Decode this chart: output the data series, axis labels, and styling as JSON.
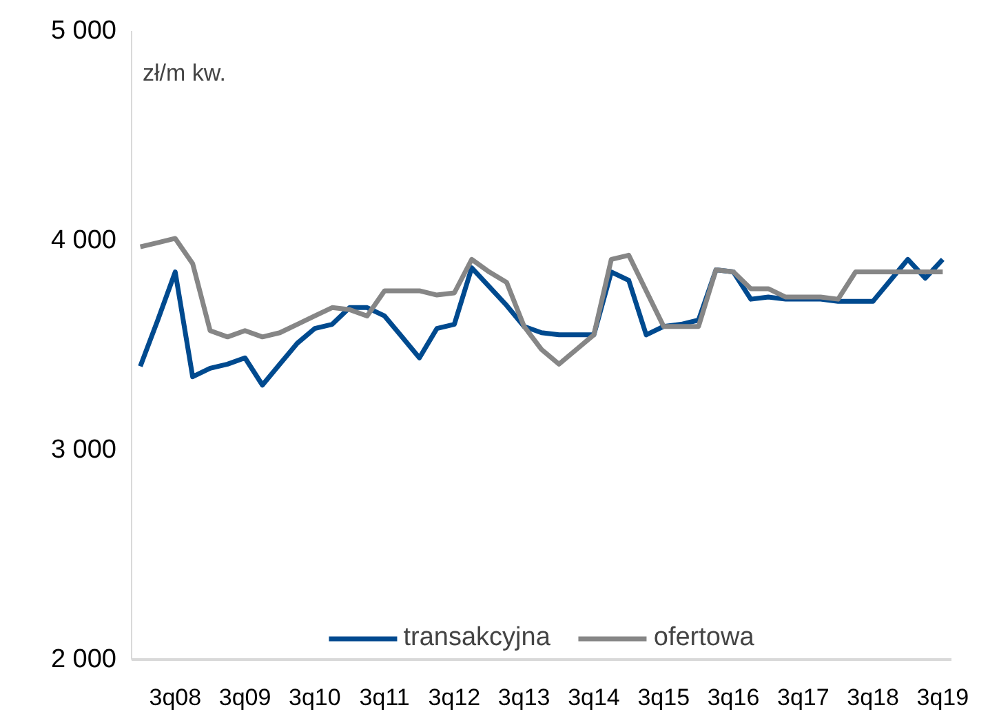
{
  "chart_data": {
    "type": "line",
    "ylabel": "zł/m kw.",
    "categories": [
      null,
      null,
      "3q08",
      null,
      null,
      null,
      "3q09",
      null,
      null,
      null,
      "3q10",
      null,
      null,
      null,
      "3q11",
      null,
      null,
      null,
      "3q12",
      null,
      null,
      null,
      "3q13",
      null,
      null,
      null,
      "3q14",
      null,
      null,
      null,
      "3q15",
      null,
      null,
      null,
      "3q16",
      null,
      null,
      null,
      "3q17",
      null,
      null,
      null,
      "3q18",
      null,
      null,
      null,
      "3q19"
    ],
    "series": [
      {
        "name": "transakcyjna",
        "color": "#004a8f",
        "values": [
          3400,
          3620,
          3850,
          3350,
          3390,
          3410,
          3440,
          3310,
          3410,
          3510,
          3580,
          3600,
          3680,
          3680,
          3640,
          3540,
          3440,
          3580,
          3600,
          3870,
          3780,
          3690,
          3590,
          3560,
          3550,
          3550,
          3550,
          3850,
          3810,
          3550,
          3590,
          3600,
          3620,
          3860,
          3850,
          3720,
          3730,
          3720,
          3720,
          3720,
          3710,
          3710,
          3710,
          3810,
          3910,
          3820,
          3910
        ]
      },
      {
        "name": "ofertowa",
        "color": "#868686",
        "values": [
          3970,
          3990,
          4010,
          3890,
          3570,
          3540,
          3570,
          3540,
          3560,
          3600,
          3640,
          3680,
          3670,
          3640,
          3760,
          3760,
          3760,
          3740,
          3750,
          3910,
          3850,
          3800,
          3590,
          3480,
          3410,
          3480,
          3550,
          3910,
          3930,
          3760,
          3590,
          3590,
          3590,
          3860,
          3850,
          3770,
          3770,
          3730,
          3730,
          3730,
          3720,
          3850,
          3850,
          3850,
          3850,
          3850,
          3850
        ]
      }
    ],
    "ylim": [
      2000,
      5000
    ],
    "yticks": [
      {
        "value": 2000,
        "label": "2 000"
      },
      {
        "value": 3000,
        "label": "3 000"
      },
      {
        "value": 4000,
        "label": "4 000"
      },
      {
        "value": 5000,
        "label": "5 000"
      }
    ],
    "grid": false,
    "legend": "bottom",
    "line_style": "solid",
    "marker": "none"
  }
}
